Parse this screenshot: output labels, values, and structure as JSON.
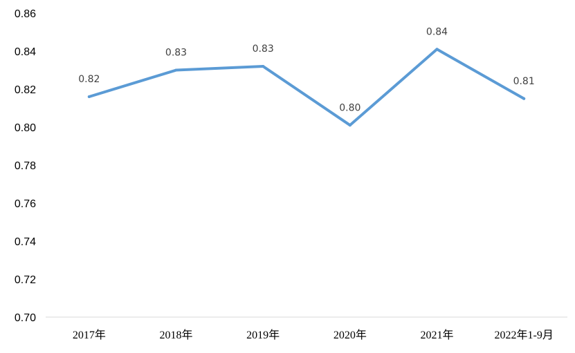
{
  "chart_data": {
    "type": "line",
    "title": "",
    "xlabel": "",
    "ylabel": "",
    "categories": [
      "2017年",
      "2018年",
      "2019年",
      "2020年",
      "2021年",
      "2022年1-9月"
    ],
    "series": [
      {
        "values": [
          0.816,
          0.83,
          0.832,
          0.801,
          0.841,
          0.815
        ],
        "labels": [
          "0.82",
          "0.83",
          "0.83",
          "0.80",
          "0.84",
          "0.81"
        ],
        "color": "#5B9BD5"
      }
    ],
    "ylim": [
      0.7,
      0.86
    ],
    "yticks": [
      "0.70",
      "0.72",
      "0.74",
      "0.76",
      "0.78",
      "0.80",
      "0.82",
      "0.84",
      "0.86"
    ],
    "grid": false,
    "legend": "none"
  }
}
